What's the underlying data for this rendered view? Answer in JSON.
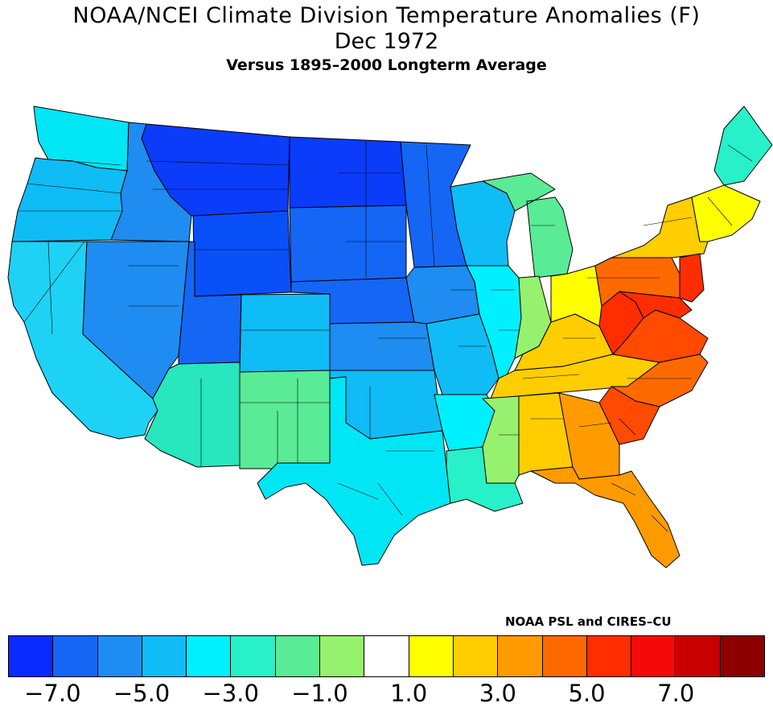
{
  "title": {
    "line1": "NOAA/NCEI Climate Division Temperature Anomalies (F)",
    "line2": "Dec 1972",
    "line3": "Versus 1895–2000 Longterm Average"
  },
  "credit": "NOAA PSL and CIRES–CU",
  "legend": {
    "colors": [
      "#0a2bff",
      "#1566f5",
      "#1e8cf0",
      "#0fbcf5",
      "#00f0ff",
      "#28f0c8",
      "#5aeb96",
      "#96f26e",
      "#ffffff",
      "#ffff00",
      "#ffcd00",
      "#ff9b00",
      "#ff6a00",
      "#ff2d00",
      "#f50a0a",
      "#c80000",
      "#8c0000"
    ],
    "tick_labels": [
      "−7.0",
      "−5.0",
      "−3.0",
      "−1.0",
      "1.0",
      "3.0",
      "5.0",
      "7.0"
    ],
    "tick_values": [
      -7,
      -5,
      -3,
      -1,
      1,
      3,
      5,
      7
    ]
  },
  "regions": [
    {
      "name": "Washington",
      "color": "#00e6f5"
    },
    {
      "name": "Oregon",
      "color": "#0fbcf5"
    },
    {
      "name": "California",
      "color": "#1ed2f5"
    },
    {
      "name": "Nevada",
      "color": "#1e8cf0"
    },
    {
      "name": "Idaho",
      "color": "#1e8cf0"
    },
    {
      "name": "Montana",
      "color": "#0a3cfa"
    },
    {
      "name": "Wyoming",
      "color": "#0a50f8"
    },
    {
      "name": "Utah",
      "color": "#1566f5"
    },
    {
      "name": "Colorado",
      "color": "#0fbcf5"
    },
    {
      "name": "Arizona",
      "color": "#28e6be"
    },
    {
      "name": "New Mexico",
      "color": "#5aeb96"
    },
    {
      "name": "North Dakota",
      "color": "#0a3cfa"
    },
    {
      "name": "South Dakota",
      "color": "#1566f5"
    },
    {
      "name": "Nebraska",
      "color": "#1566f5"
    },
    {
      "name": "Kansas",
      "color": "#1e8cf0"
    },
    {
      "name": "Oklahoma",
      "color": "#0fbcf5"
    },
    {
      "name": "Texas",
      "color": "#00e6f5"
    },
    {
      "name": "Minnesota",
      "color": "#1566f5"
    },
    {
      "name": "Iowa",
      "color": "#1e8cf0"
    },
    {
      "name": "Missouri",
      "color": "#0fbcf5"
    },
    {
      "name": "Arkansas",
      "color": "#00f0ff"
    },
    {
      "name": "Louisiana",
      "color": "#28f0c8"
    },
    {
      "name": "Wisconsin",
      "color": "#0fbcf5"
    },
    {
      "name": "Illinois",
      "color": "#00f0ff"
    },
    {
      "name": "Michigan",
      "color": "#5aeb96"
    },
    {
      "name": "Indiana",
      "color": "#96f26e"
    },
    {
      "name": "Kentucky",
      "color": "#ffcd00"
    },
    {
      "name": "Tennessee",
      "color": "#ffcd00"
    },
    {
      "name": "Mississippi",
      "color": "#96f26e"
    },
    {
      "name": "Alabama",
      "color": "#ffcd00"
    },
    {
      "name": "Ohio",
      "color": "#ffff00"
    },
    {
      "name": "West Virginia",
      "color": "#ff2d00"
    },
    {
      "name": "Virginia",
      "color": "#ff4a00"
    },
    {
      "name": "North Carolina",
      "color": "#ff6a00"
    },
    {
      "name": "South Carolina",
      "color": "#ff4a00"
    },
    {
      "name": "Georgia",
      "color": "#ff9b00"
    },
    {
      "name": "Florida",
      "color": "#ff9b00"
    },
    {
      "name": "Pennsylvania",
      "color": "#ff6a00"
    },
    {
      "name": "New York",
      "color": "#ffcd00"
    },
    {
      "name": "New Jersey",
      "color": "#ff2d00"
    },
    {
      "name": "Maryland",
      "color": "#ff2d00"
    },
    {
      "name": "New England",
      "color": "#ffff00"
    },
    {
      "name": "Maine",
      "color": "#28f0c8"
    }
  ]
}
